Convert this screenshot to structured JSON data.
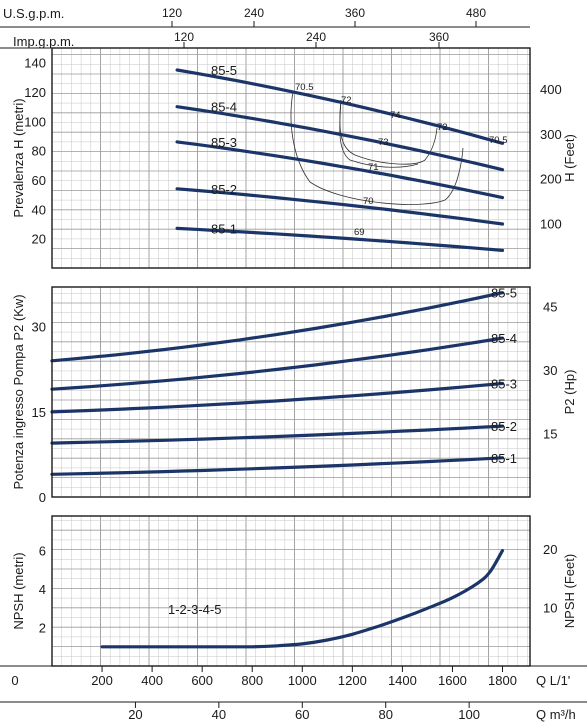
{
  "colors": {
    "curve": "#1c3568",
    "grid_minor": "#c6c6c6",
    "grid_major": "#9a9a9a",
    "frame": "#1a1a1a",
    "efficiency": "#333333"
  },
  "top_scales": {
    "usgpm": {
      "label": "U.S.g.p.m.",
      "ticks": [
        "120",
        "240",
        "360",
        "480"
      ]
    },
    "impgpm": {
      "label": "Imp.g.p.m.",
      "ticks": [
        "120",
        "240",
        "360"
      ]
    }
  },
  "bottom_scales": {
    "lmin": {
      "label": "Q  L/1'",
      "ticks": [
        "0",
        "200",
        "400",
        "600",
        "800",
        "1000",
        "1200",
        "1400",
        "1600",
        "1800"
      ]
    },
    "m3h": {
      "label": "Q  m³/h",
      "ticks": [
        "20",
        "40",
        "60",
        "80",
        "100"
      ]
    }
  },
  "chart_data": [
    {
      "type": "line",
      "ylabel": "Prevalenza H (metri)",
      "y2label": "H (Feet)",
      "ylim": [
        0,
        150
      ],
      "yticks": [
        "20",
        "40",
        "60",
        "80",
        "100",
        "120",
        "140"
      ],
      "y2ticks": [
        "100",
        "200",
        "300",
        "400"
      ],
      "series": [
        {
          "name": "85-5",
          "x": [
            500,
            1800
          ],
          "values": [
            135,
            85
          ]
        },
        {
          "name": "85-4",
          "x": [
            500,
            1800
          ],
          "values": [
            110,
            67
          ]
        },
        {
          "name": "85-3",
          "x": [
            500,
            1800
          ],
          "values": [
            86,
            48
          ]
        },
        {
          "name": "85-2",
          "x": [
            500,
            1800
          ],
          "values": [
            54,
            30
          ]
        },
        {
          "name": "85-1",
          "x": [
            500,
            1800
          ],
          "values": [
            27,
            12
          ]
        }
      ],
      "efficiency_labels": [
        "70.5",
        "72",
        "74",
        "72",
        "70.5",
        "73",
        "71",
        "70",
        "69"
      ]
    },
    {
      "type": "line",
      "ylabel": "Potenza ingresso Pompa P2 (Kw)",
      "y2label": "P2 (Hp)",
      "ylim": [
        0,
        37
      ],
      "yticks": [
        "0",
        "15",
        "30"
      ],
      "y2ticks": [
        "15",
        "30",
        "45"
      ],
      "series": [
        {
          "name": "85-5",
          "x": [
            0,
            1800
          ],
          "values": [
            24,
            36
          ]
        },
        {
          "name": "85-4",
          "x": [
            0,
            1800
          ],
          "values": [
            19,
            28
          ]
        },
        {
          "name": "85-3",
          "x": [
            0,
            1800
          ],
          "values": [
            15,
            20
          ]
        },
        {
          "name": "85-2",
          "x": [
            0,
            1800
          ],
          "values": [
            9.5,
            12.5
          ]
        },
        {
          "name": "85-1",
          "x": [
            0,
            1800
          ],
          "values": [
            4,
            6.9
          ]
        }
      ]
    },
    {
      "type": "line",
      "ylabel": "NPSH (metri)",
      "y2label": "NPSH (Feet)",
      "ylim": [
        0,
        7.8
      ],
      "yticks": [
        "2",
        "4",
        "6"
      ],
      "y2ticks": [
        "10",
        "20"
      ],
      "series": [
        {
          "name": "1-2-3-4-5",
          "x": [
            200,
            400,
            600,
            800,
            900,
            1000,
            1100,
            1200,
            1300,
            1400,
            1500,
            1600,
            1700,
            1750,
            1800
          ],
          "values": [
            1.0,
            1.0,
            1.0,
            1.0,
            1.05,
            1.15,
            1.35,
            1.65,
            2.05,
            2.5,
            3.0,
            3.55,
            4.3,
            4.9,
            6.0
          ]
        }
      ]
    }
  ]
}
